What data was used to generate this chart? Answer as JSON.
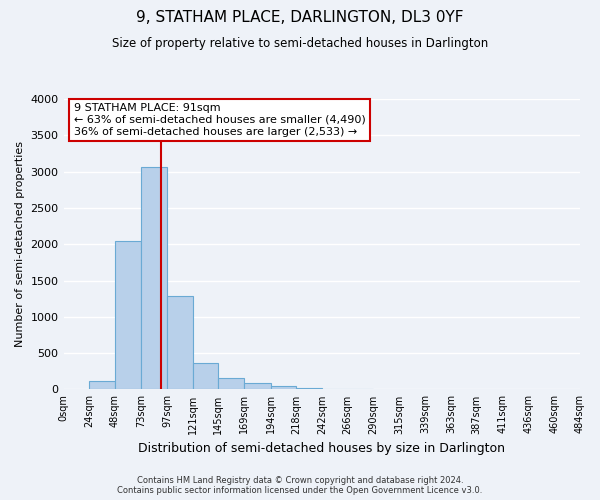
{
  "title": "9, STATHAM PLACE, DARLINGTON, DL3 0YF",
  "subtitle": "Size of property relative to semi-detached houses in Darlington",
  "xlabel": "Distribution of semi-detached houses by size in Darlington",
  "ylabel": "Number of semi-detached properties",
  "annotation_line1": "9 STATHAM PLACE: 91sqm",
  "annotation_line2": "← 63% of semi-detached houses are smaller (4,490)",
  "annotation_line3": "36% of semi-detached houses are larger (2,533) →",
  "footer_line1": "Contains HM Land Registry data © Crown copyright and database right 2024.",
  "footer_line2": "Contains public sector information licensed under the Open Government Licence v3.0.",
  "property_size": 91,
  "bar_edges": [
    0,
    24,
    48,
    73,
    97,
    121,
    145,
    169,
    194,
    218,
    242,
    266,
    290,
    315,
    339,
    363,
    387,
    411,
    436,
    460,
    484
  ],
  "bar_heights": [
    0,
    110,
    2040,
    3060,
    1280,
    360,
    155,
    85,
    45,
    25,
    10,
    5,
    0,
    0,
    0,
    0,
    0,
    0,
    0,
    0
  ],
  "bar_color": "#b8d0ea",
  "bar_edge_color": "#6aaad4",
  "vline_x": 91,
  "vline_color": "#cc0000",
  "ylim": [
    0,
    4000
  ],
  "xlim": [
    0,
    484
  ],
  "background_color": "#eef2f8",
  "grid_color": "#ffffff",
  "annotation_box_color": "#ffffff",
  "annotation_box_edge_color": "#cc0000",
  "yticks": [
    0,
    500,
    1000,
    1500,
    2000,
    2500,
    3000,
    3500,
    4000
  ],
  "xtick_positions": [
    0,
    24,
    48,
    73,
    97,
    121,
    145,
    169,
    194,
    218,
    242,
    266,
    290,
    315,
    339,
    363,
    387,
    411,
    436,
    460,
    484
  ],
  "xtick_labels": [
    "0sqm",
    "24sqm",
    "48sqm",
    "73sqm",
    "97sqm",
    "121sqm",
    "145sqm",
    "169sqm",
    "194sqm",
    "218sqm",
    "242sqm",
    "266sqm",
    "290sqm",
    "315sqm",
    "339sqm",
    "363sqm",
    "387sqm",
    "411sqm",
    "436sqm",
    "460sqm",
    "484sqm"
  ]
}
